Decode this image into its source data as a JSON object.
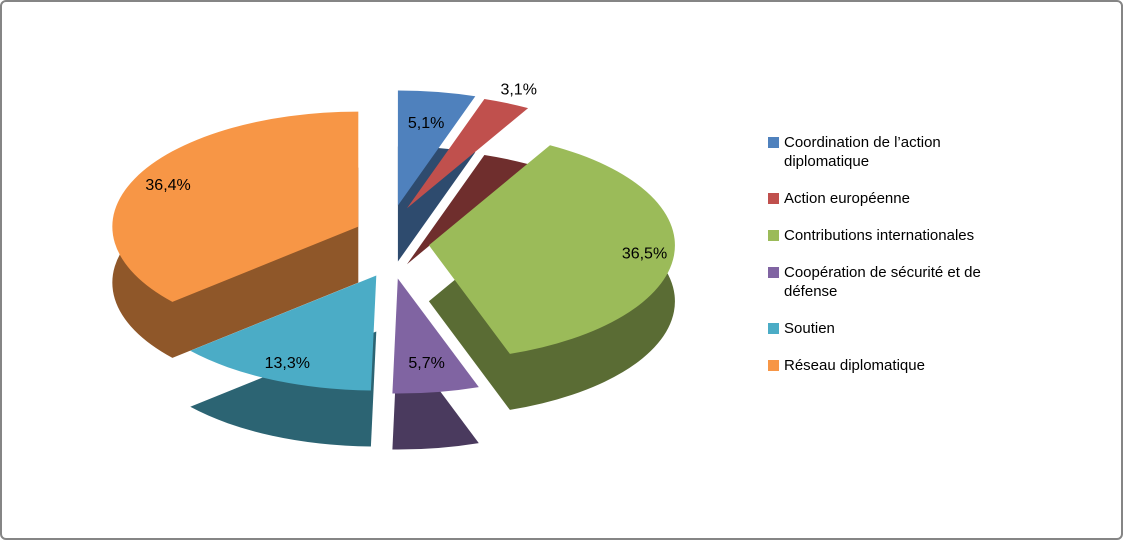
{
  "canvas": {
    "background": "#FFFFFF",
    "border_color": "#858585"
  },
  "chart_data": {
    "type": "pie",
    "style": "pie-3d-exploded",
    "title": "",
    "legend_position": "right",
    "start_angle_deg": 0,
    "direction": "clockwise",
    "label_color": "#000000",
    "series": [
      {
        "label": "Coordination de l’action diplomatique",
        "value": 5.1,
        "display_label": "5,1%",
        "color": "#4F81BD"
      },
      {
        "label": "Action européenne",
        "value": 3.1,
        "display_label": "3,1%",
        "color": "#C0504D"
      },
      {
        "label": "Contributions internationales",
        "value": 36.5,
        "display_label": "36,5%",
        "color": "#9BBB59"
      },
      {
        "label": "Coopération de sécurité et de défense",
        "value": 5.7,
        "display_label": "5,7%",
        "color": "#8064A2"
      },
      {
        "label": "Soutien",
        "value": 13.3,
        "display_label": "13,3%",
        "color": "#4BACC6"
      },
      {
        "label": "Réseau diplomatique",
        "value": 36.4,
        "display_label": "36,4%",
        "color": "#F79646"
      }
    ]
  }
}
